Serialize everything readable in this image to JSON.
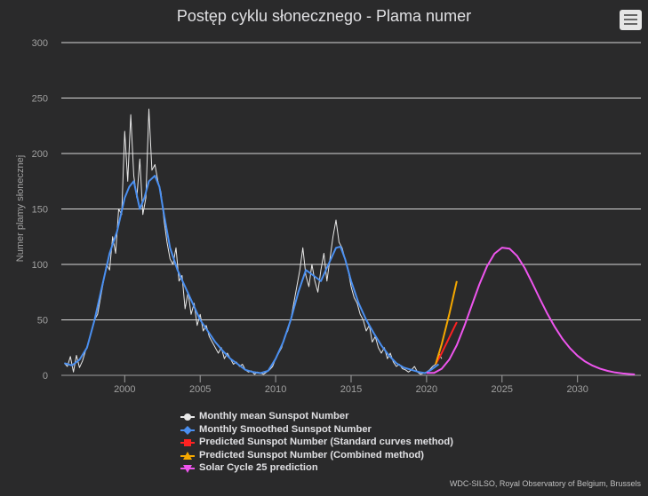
{
  "chart_data": {
    "type": "line",
    "title": "Postęp cyklu słonecznego - Plama numer",
    "ylabel": "Numer plamy słonecznej",
    "xlabel": "",
    "xlim": [
      1995.8,
      2034.2
    ],
    "ylim": [
      0,
      300
    ],
    "yticks": [
      0,
      50,
      100,
      150,
      200,
      250,
      300
    ],
    "xticks": [
      2000,
      2005,
      2010,
      2015,
      2020,
      2025,
      2030
    ],
    "grid": true,
    "legend_position": "bottom",
    "series": [
      {
        "name": "Monthly mean Sunspot Number",
        "color": "#e8e8e8",
        "marker": "circle",
        "points": [
          [
            1996.0,
            11
          ],
          [
            1996.2,
            8
          ],
          [
            1996.4,
            17
          ],
          [
            1996.6,
            3
          ],
          [
            1996.8,
            18
          ],
          [
            1997.0,
            7
          ],
          [
            1997.2,
            13
          ],
          [
            1997.4,
            22
          ],
          [
            1997.6,
            30
          ],
          [
            1997.8,
            40
          ],
          [
            1998.0,
            50
          ],
          [
            1998.2,
            55
          ],
          [
            1998.4,
            70
          ],
          [
            1998.6,
            85
          ],
          [
            1998.8,
            100
          ],
          [
            1999.0,
            95
          ],
          [
            1999.2,
            125
          ],
          [
            1999.4,
            110
          ],
          [
            1999.6,
            150
          ],
          [
            1999.8,
            145
          ],
          [
            2000.0,
            220
          ],
          [
            2000.2,
            175
          ],
          [
            2000.4,
            235
          ],
          [
            2000.6,
            180
          ],
          [
            2000.8,
            160
          ],
          [
            2001.0,
            195
          ],
          [
            2001.2,
            145
          ],
          [
            2001.4,
            160
          ],
          [
            2001.6,
            240
          ],
          [
            2001.8,
            185
          ],
          [
            2002.0,
            190
          ],
          [
            2002.2,
            175
          ],
          [
            2002.4,
            165
          ],
          [
            2002.6,
            140
          ],
          [
            2002.8,
            120
          ],
          [
            2003.0,
            105
          ],
          [
            2003.2,
            100
          ],
          [
            2003.4,
            115
          ],
          [
            2003.6,
            85
          ],
          [
            2003.8,
            90
          ],
          [
            2004.0,
            60
          ],
          [
            2004.2,
            75
          ],
          [
            2004.4,
            55
          ],
          [
            2004.6,
            65
          ],
          [
            2004.8,
            45
          ],
          [
            2005.0,
            55
          ],
          [
            2005.2,
            40
          ],
          [
            2005.4,
            45
          ],
          [
            2005.6,
            35
          ],
          [
            2005.8,
            30
          ],
          [
            2006.0,
            25
          ],
          [
            2006.2,
            20
          ],
          [
            2006.4,
            25
          ],
          [
            2006.6,
            15
          ],
          [
            2006.8,
            20
          ],
          [
            2007.0,
            15
          ],
          [
            2007.2,
            10
          ],
          [
            2007.4,
            12
          ],
          [
            2007.6,
            8
          ],
          [
            2007.8,
            10
          ],
          [
            2008.0,
            5
          ],
          [
            2008.2,
            3
          ],
          [
            2008.4,
            4
          ],
          [
            2008.6,
            1
          ],
          [
            2008.8,
            3
          ],
          [
            2009.0,
            2
          ],
          [
            2009.2,
            1
          ],
          [
            2009.4,
            3
          ],
          [
            2009.6,
            5
          ],
          [
            2009.8,
            8
          ],
          [
            2010.0,
            15
          ],
          [
            2010.2,
            20
          ],
          [
            2010.4,
            25
          ],
          [
            2010.6,
            35
          ],
          [
            2010.8,
            40
          ],
          [
            2011.0,
            50
          ],
          [
            2011.2,
            65
          ],
          [
            2011.4,
            80
          ],
          [
            2011.6,
            95
          ],
          [
            2011.8,
            115
          ],
          [
            2012.0,
            90
          ],
          [
            2012.2,
            80
          ],
          [
            2012.4,
            100
          ],
          [
            2012.6,
            85
          ],
          [
            2012.8,
            75
          ],
          [
            2013.0,
            95
          ],
          [
            2013.2,
            110
          ],
          [
            2013.4,
            85
          ],
          [
            2013.6,
            105
          ],
          [
            2013.8,
            125
          ],
          [
            2014.0,
            140
          ],
          [
            2014.2,
            120
          ],
          [
            2014.4,
            115
          ],
          [
            2014.6,
            105
          ],
          [
            2014.8,
            95
          ],
          [
            2015.0,
            80
          ],
          [
            2015.2,
            70
          ],
          [
            2015.4,
            65
          ],
          [
            2015.6,
            55
          ],
          [
            2015.8,
            50
          ],
          [
            2016.0,
            40
          ],
          [
            2016.2,
            45
          ],
          [
            2016.4,
            30
          ],
          [
            2016.6,
            35
          ],
          [
            2016.8,
            25
          ],
          [
            2017.0,
            20
          ],
          [
            2017.2,
            25
          ],
          [
            2017.4,
            15
          ],
          [
            2017.6,
            20
          ],
          [
            2017.8,
            12
          ],
          [
            2018.0,
            8
          ],
          [
            2018.2,
            10
          ],
          [
            2018.4,
            6
          ],
          [
            2018.6,
            5
          ],
          [
            2018.8,
            3
          ],
          [
            2019.0,
            5
          ],
          [
            2019.2,
            8
          ],
          [
            2019.4,
            3
          ],
          [
            2019.6,
            1
          ],
          [
            2019.8,
            2
          ],
          [
            2020.0,
            3
          ],
          [
            2020.2,
            5
          ],
          [
            2020.4,
            8
          ],
          [
            2020.6,
            10
          ],
          [
            2020.8,
            20
          ],
          [
            2021.0,
            15
          ]
        ]
      },
      {
        "name": "Monthly Smoothed Sunspot Number",
        "color": "#4a8ff0",
        "marker": "diamond",
        "points": [
          [
            1996.0,
            11
          ],
          [
            1996.5,
            9
          ],
          [
            1997.0,
            14
          ],
          [
            1997.5,
            25
          ],
          [
            1998.0,
            50
          ],
          [
            1998.5,
            80
          ],
          [
            1999.0,
            110
          ],
          [
            1999.5,
            130
          ],
          [
            2000.0,
            160
          ],
          [
            2000.3,
            170
          ],
          [
            2000.6,
            175
          ],
          [
            2001.0,
            150
          ],
          [
            2001.3,
            160
          ],
          [
            2001.6,
            175
          ],
          [
            2002.0,
            180
          ],
          [
            2002.3,
            170
          ],
          [
            2002.6,
            145
          ],
          [
            2003.0,
            115
          ],
          [
            2003.5,
            95
          ],
          [
            2004.0,
            80
          ],
          [
            2004.5,
            65
          ],
          [
            2005.0,
            50
          ],
          [
            2005.5,
            40
          ],
          [
            2006.0,
            30
          ],
          [
            2006.5,
            22
          ],
          [
            2007.0,
            15
          ],
          [
            2007.5,
            10
          ],
          [
            2008.0,
            5
          ],
          [
            2008.5,
            3
          ],
          [
            2009.0,
            2
          ],
          [
            2009.5,
            4
          ],
          [
            2010.0,
            15
          ],
          [
            2010.5,
            30
          ],
          [
            2011.0,
            50
          ],
          [
            2011.5,
            75
          ],
          [
            2012.0,
            95
          ],
          [
            2012.5,
            90
          ],
          [
            2013.0,
            85
          ],
          [
            2013.5,
            100
          ],
          [
            2014.0,
            115
          ],
          [
            2014.3,
            116
          ],
          [
            2014.6,
            105
          ],
          [
            2015.0,
            85
          ],
          [
            2015.5,
            65
          ],
          [
            2016.0,
            50
          ],
          [
            2016.5,
            38
          ],
          [
            2017.0,
            27
          ],
          [
            2017.5,
            18
          ],
          [
            2018.0,
            11
          ],
          [
            2018.5,
            7
          ],
          [
            2019.0,
            5
          ],
          [
            2019.5,
            3
          ],
          [
            2019.9,
            2
          ],
          [
            2020.3,
            5
          ],
          [
            2020.8,
            10
          ]
        ]
      },
      {
        "name": "Predicted Sunspot Number (Standard curves method)",
        "color": "#ff2222",
        "marker": "square",
        "points": [
          [
            2020.6,
            10
          ],
          [
            2021.0,
            20
          ],
          [
            2021.5,
            34
          ],
          [
            2022.0,
            48
          ]
        ]
      },
      {
        "name": "Predicted Sunspot Number (Combined method)",
        "color": "#f5a800",
        "marker": "triangle",
        "points": [
          [
            2020.6,
            10
          ],
          [
            2021.0,
            28
          ],
          [
            2021.5,
            55
          ],
          [
            2022.0,
            85
          ]
        ]
      },
      {
        "name": "Solar Cycle 25 prediction",
        "color": "#ee55ee",
        "marker": "triangle-down",
        "points": [
          [
            2020.0,
            2.2
          ],
          [
            2020.5,
            2.2
          ],
          [
            2021.0,
            5.9
          ],
          [
            2021.5,
            14.2
          ],
          [
            2022.0,
            27.2
          ],
          [
            2022.5,
            44.2
          ],
          [
            2023.0,
            63.2
          ],
          [
            2023.5,
            82.0
          ],
          [
            2024.0,
            98.2
          ],
          [
            2024.5,
            109.7
          ],
          [
            2025.0,
            115.1
          ],
          [
            2025.5,
            114.2
          ],
          [
            2026.0,
            107.6
          ],
          [
            2026.5,
            96.8
          ],
          [
            2027.0,
            83.4
          ],
          [
            2027.5,
            69.2
          ],
          [
            2028.0,
            55.7
          ],
          [
            2028.5,
            43.5
          ],
          [
            2029.0,
            33.0
          ],
          [
            2029.5,
            24.5
          ],
          [
            2030.0,
            17.7
          ],
          [
            2030.5,
            12.5
          ],
          [
            2031.0,
            8.7
          ],
          [
            2031.5,
            5.9
          ],
          [
            2032.0,
            4.0
          ],
          [
            2032.5,
            2.6
          ],
          [
            2033.0,
            1.7
          ],
          [
            2033.5,
            1.1
          ],
          [
            2033.8,
            0.8
          ]
        ]
      }
    ]
  },
  "credit": "WDC-SILSO, Royal Observatory of Belgium, Brussels"
}
